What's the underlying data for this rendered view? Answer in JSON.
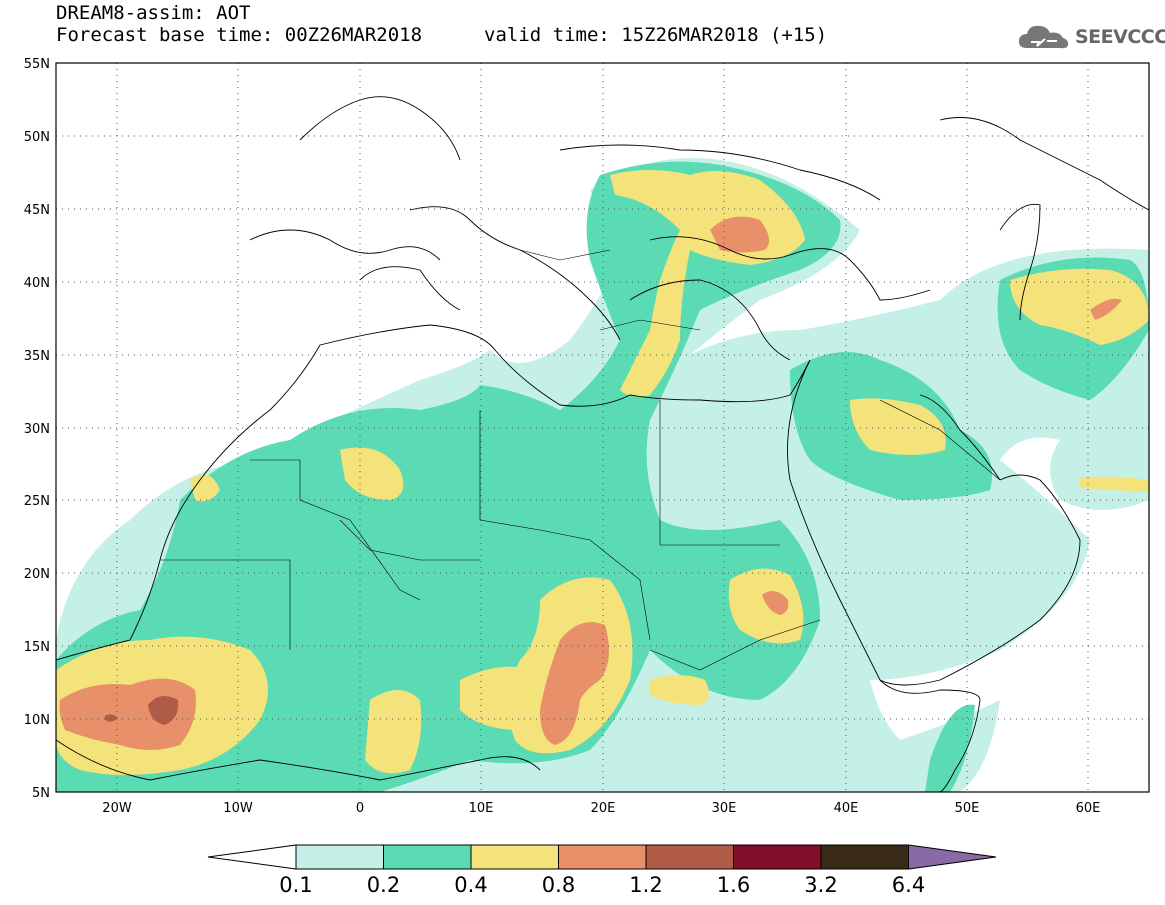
{
  "header": {
    "title_line1": "DREAM8-assim: AOT",
    "title_line2": "Forecast base time: 00Z26MAR2018",
    "valid_time": "valid time: 15Z26MAR2018 (+15)",
    "logo_text": "SEEVCCC"
  },
  "map": {
    "lon_range": [
      -25,
      65
    ],
    "lat_range": [
      5,
      55
    ],
    "lat_ticks": [
      {
        "value": 55,
        "label": "55N"
      },
      {
        "value": 50,
        "label": "50N"
      },
      {
        "value": 45,
        "label": "45N"
      },
      {
        "value": 40,
        "label": "40N"
      },
      {
        "value": 35,
        "label": "35N"
      },
      {
        "value": 30,
        "label": "30N"
      },
      {
        "value": 25,
        "label": "25N"
      },
      {
        "value": 20,
        "label": "20N"
      },
      {
        "value": 15,
        "label": "15N"
      },
      {
        "value": 10,
        "label": "10N"
      },
      {
        "value": 5,
        "label": "5N"
      }
    ],
    "lon_ticks": [
      {
        "value": -20,
        "label": "20W"
      },
      {
        "value": -10,
        "label": "10W"
      },
      {
        "value": 0,
        "label": "0"
      },
      {
        "value": 10,
        "label": "10E"
      },
      {
        "value": 20,
        "label": "20E"
      },
      {
        "value": 30,
        "label": "30E"
      },
      {
        "value": 40,
        "label": "40E"
      },
      {
        "value": 50,
        "label": "50E"
      },
      {
        "value": 60,
        "label": "60E"
      }
    ]
  },
  "colorbar": {
    "labels": [
      "0.1",
      "0.2",
      "0.4",
      "0.8",
      "1.2",
      "1.6",
      "3.2",
      "6.4"
    ],
    "colors": [
      "#ffffff",
      "#c4f0e8",
      "#5bdbb4",
      "#f4e27a",
      "#e8906a",
      "#b05a48",
      "#80102a",
      "#3a2a18",
      "#8a6aa4"
    ]
  },
  "legend_colors": {
    "v01": "#c4f0e8",
    "v02": "#5bdbb4",
    "v04": "#f4e27a",
    "v08": "#e8906a",
    "v12": "#b05a48"
  }
}
